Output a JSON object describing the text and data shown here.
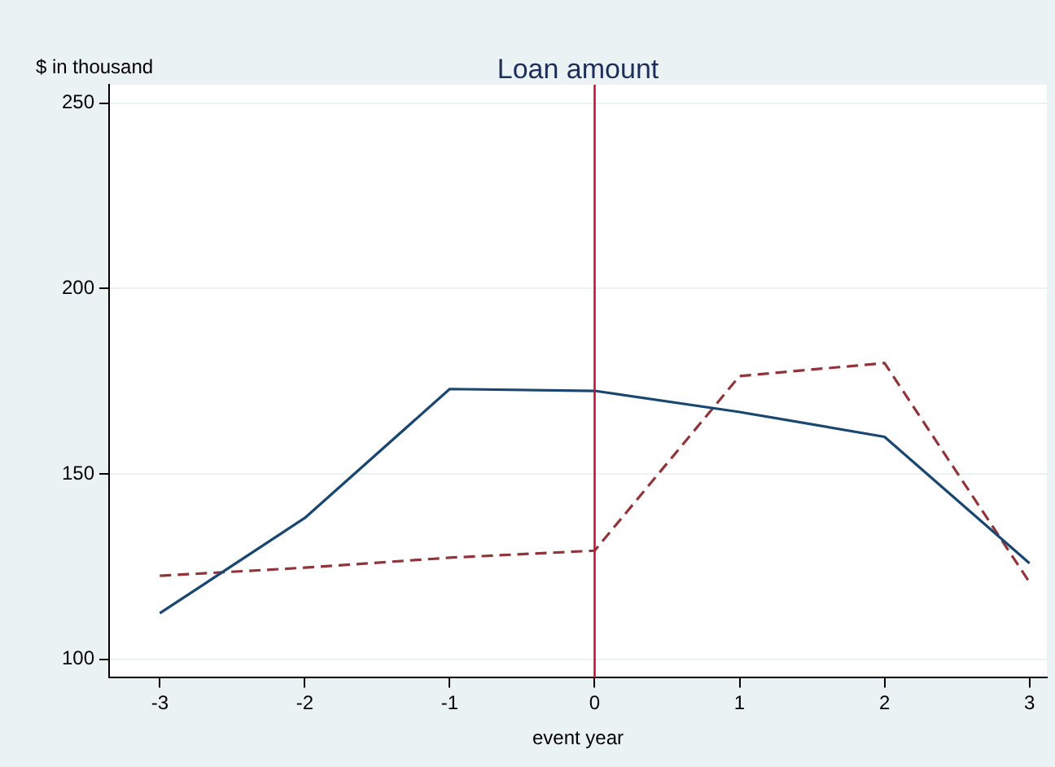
{
  "chart_data": {
    "type": "line",
    "title": "Loan amount",
    "ylabel": "$ in thousand",
    "xlabel": "event year",
    "x": [
      -3,
      -2,
      -1,
      0,
      1,
      2,
      3
    ],
    "series": [
      {
        "color": "#1a476f",
        "line_style": "solid",
        "values": [
          112.4,
          138.1,
          172.9,
          172.4,
          166.7,
          160,
          125.9
        ]
      },
      {
        "color": "#90353b",
        "line_style": "dashed",
        "values": [
          122.5,
          124.7,
          127.4,
          129.3,
          176.4,
          179.9,
          120.8
        ]
      }
    ],
    "xlim": [
      -3.35,
      3.12
    ],
    "xticks": [
      -3,
      -2,
      -1,
      0,
      1,
      2,
      3
    ],
    "ylim": [
      95,
      255
    ],
    "yticks": [
      100,
      150,
      200,
      250
    ],
    "ref_lines": [
      {
        "axis": "x",
        "value": 0,
        "color": "#c0143c"
      }
    ],
    "grid": "y",
    "legend": false,
    "marker": "none"
  }
}
